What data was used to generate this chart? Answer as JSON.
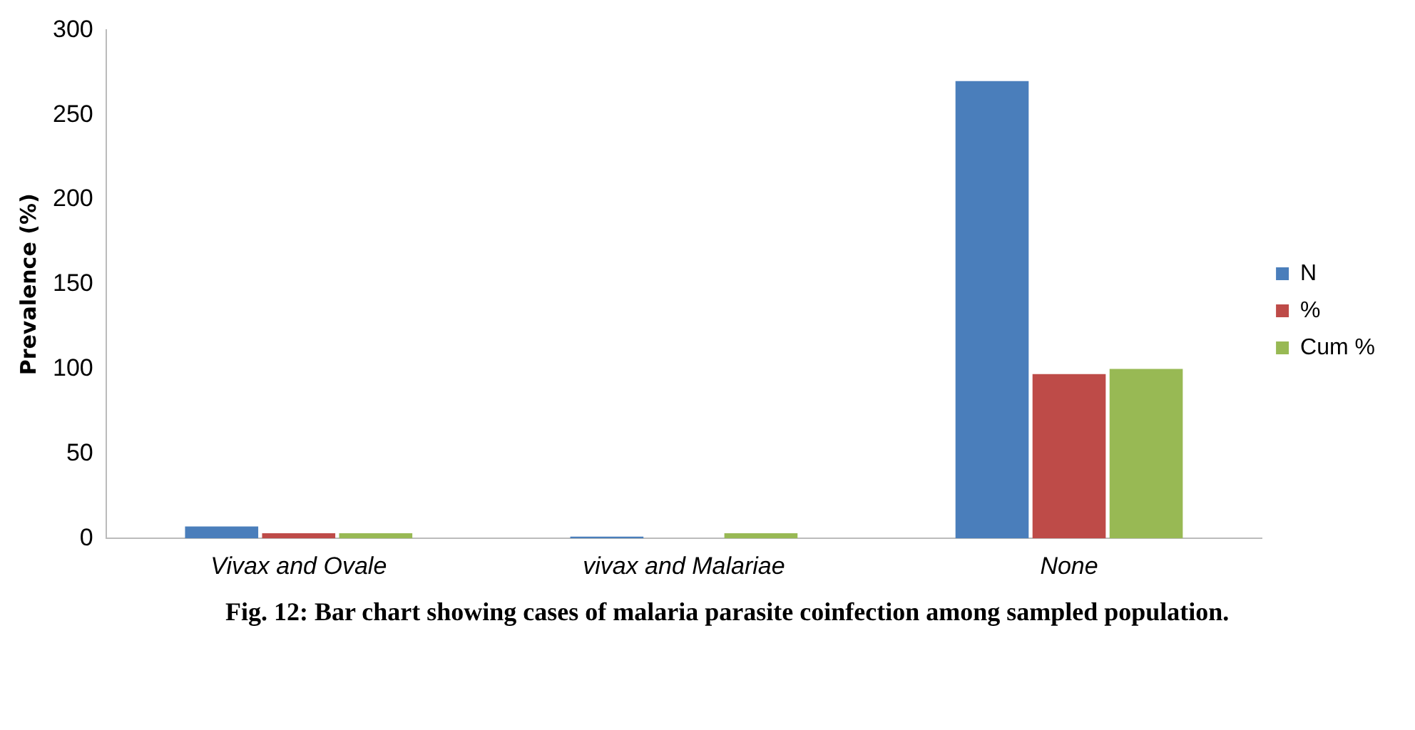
{
  "chart_data": {
    "type": "bar",
    "ylabel": "Prevalence (%)",
    "categories": [
      "Vivax and Ovale",
      "vivax and Malariae",
      "None"
    ],
    "series": [
      {
        "name": "N",
        "color": "#4a7ebb",
        "values": [
          7,
          1,
          270
        ]
      },
      {
        "name": "%",
        "color": "#be4b48",
        "values": [
          3,
          0,
          97
        ]
      },
      {
        "name": "Cum %",
        "color": "#98b954",
        "values": [
          3,
          3,
          100
        ]
      }
    ],
    "ylim": [
      0,
      300
    ],
    "yticks": [
      0,
      50,
      100,
      150,
      200,
      250,
      300
    ],
    "grid": false,
    "legend": "right",
    "annotations": [
      "Fig. 12: Bar chart showing cases of malaria parasite coinfection among sampled population."
    ]
  }
}
